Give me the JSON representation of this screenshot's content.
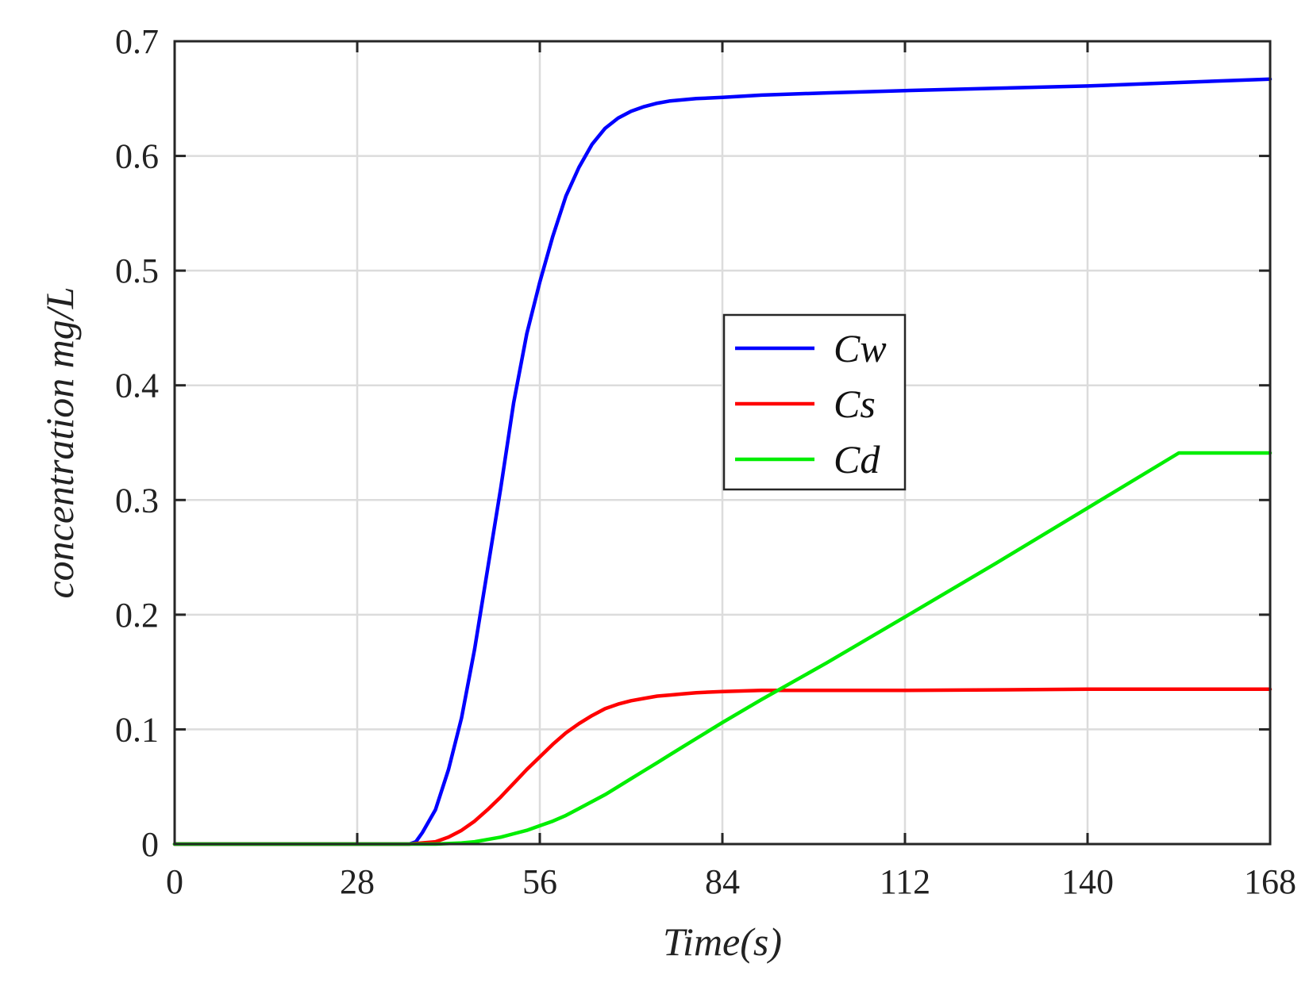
{
  "chart_data": {
    "type": "line",
    "title": "",
    "xlabel": "Time(s)",
    "ylabel": "concentration  mg/L",
    "xlim": [
      0,
      168
    ],
    "ylim": [
      0,
      0.7
    ],
    "xticks": [
      0,
      28,
      56,
      84,
      112,
      140,
      168
    ],
    "xtick_labels": [
      "0",
      "28",
      "56",
      "84",
      "112",
      "140",
      "168"
    ],
    "yticks": [
      0,
      0.1,
      0.2,
      0.3,
      0.4,
      0.5,
      0.6,
      0.7
    ],
    "ytick_labels": [
      "0",
      "0.1",
      "0.2",
      "0.3",
      "0.4",
      "0.5",
      "0.6",
      "0.7"
    ],
    "grid": true,
    "legend_position": "center",
    "series": [
      {
        "name": "Cw",
        "color": "#0000ff",
        "x": [
          0,
          28,
          36,
          37,
          38,
          40,
          42,
          44,
          46,
          48,
          50,
          52,
          54,
          56,
          58,
          60,
          62,
          64,
          66,
          68,
          70,
          72,
          74,
          76,
          78,
          80,
          84,
          90,
          100,
          112,
          126,
          140,
          154,
          168
        ],
        "y": [
          0,
          0,
          0,
          0.002,
          0.01,
          0.03,
          0.065,
          0.11,
          0.17,
          0.24,
          0.31,
          0.385,
          0.445,
          0.49,
          0.53,
          0.565,
          0.59,
          0.61,
          0.624,
          0.633,
          0.639,
          0.643,
          0.646,
          0.648,
          0.649,
          0.65,
          0.651,
          0.653,
          0.655,
          0.657,
          0.659,
          0.661,
          0.664,
          0.667
        ]
      },
      {
        "name": "Cs",
        "color": "#ff0000",
        "x": [
          0,
          36,
          40,
          42,
          44,
          46,
          48,
          50,
          52,
          54,
          56,
          58,
          60,
          62,
          64,
          66,
          68,
          70,
          72,
          74,
          76,
          78,
          80,
          84,
          90,
          100,
          112,
          140,
          168
        ],
        "y": [
          0,
          0,
          0.002,
          0.006,
          0.012,
          0.02,
          0.03,
          0.041,
          0.053,
          0.065,
          0.076,
          0.087,
          0.097,
          0.105,
          0.112,
          0.118,
          0.122,
          0.125,
          0.127,
          0.129,
          0.13,
          0.131,
          0.132,
          0.133,
          0.134,
          0.134,
          0.134,
          0.135,
          0.135
        ]
      },
      {
        "name": "Cd",
        "color": "#00ee00",
        "x": [
          0,
          40,
          44,
          46,
          48,
          50,
          52,
          54,
          56,
          58,
          60,
          62,
          64,
          66,
          68,
          70,
          72,
          74,
          76,
          78,
          80,
          84,
          90,
          100,
          112,
          126,
          140,
          154,
          168
        ],
        "y": [
          0,
          0,
          0.001,
          0.002,
          0.004,
          0.006,
          0.009,
          0.012,
          0.016,
          0.02,
          0.025,
          0.031,
          0.037,
          0.043,
          0.05,
          0.057,
          0.064,
          0.071,
          0.078,
          0.085,
          0.092,
          0.106,
          0.126,
          0.158,
          0.198,
          0.245,
          0.293,
          0.341,
          0.341
        ]
      }
    ]
  }
}
